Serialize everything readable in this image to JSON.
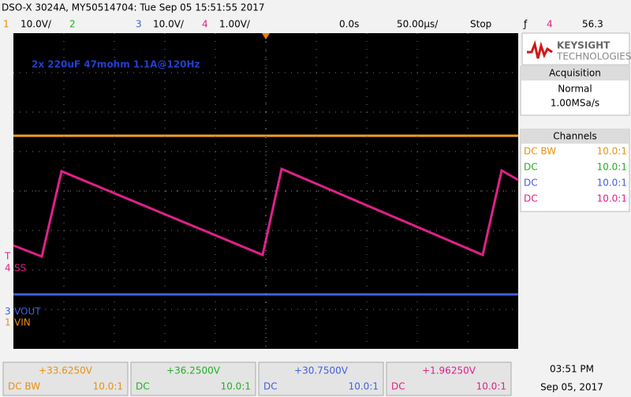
{
  "header": {
    "title": "DSO-X 3024A, MY50514704: Tue Sep 05 15:51:55 2017",
    "ch1_number": "1",
    "ch1_scale": "10.0V/",
    "ch2_number": "2",
    "ch3_number": "3",
    "ch3_scale": "10.0V/",
    "ch4_number": "4",
    "ch4_scale": "1.00V/",
    "time_offset": "0.0s",
    "time_scale": "50.00µs/",
    "run_state": "Stop",
    "trigger_channel": "4",
    "trigger_level": "56.3"
  },
  "annotation": "2x 220uF 47mohm 1.1A@120Hz",
  "markers": [
    {
      "number": "T",
      "label": ""
    },
    {
      "number": "4",
      "label": "SS"
    },
    {
      "number": "3",
      "label": "VOUT"
    },
    {
      "number": "1",
      "label": "VIN"
    }
  ],
  "panel": {
    "brand": "KEYSIGHT",
    "brand_sub": "TECHNOLOGIES",
    "acquisition": {
      "title": "Acquisition",
      "mode": "Normal",
      "rate": "1.00MSa/s"
    },
    "channels": {
      "title": "Channels",
      "rows": [
        {
          "coupling": "DC BW",
          "ratio": "10.0:1"
        },
        {
          "coupling": "DC",
          "ratio": "10.0:1"
        },
        {
          "coupling": "DC",
          "ratio": "10.0:1"
        },
        {
          "coupling": "DC",
          "ratio": "10.0:1"
        }
      ]
    }
  },
  "footer": {
    "channels": [
      {
        "value": "+33.6250V",
        "coupling": "DC BW",
        "ratio": "10.0:1"
      },
      {
        "value": "+36.2500V",
        "coupling": "DC",
        "ratio": "10.0:1"
      },
      {
        "value": "+30.7500V",
        "coupling": "DC",
        "ratio": "10.0:1"
      },
      {
        "value": "+1.96250V",
        "coupling": "DC",
        "ratio": "10.0:1"
      }
    ],
    "time": "03:51 PM",
    "date": "Sep 05, 2017"
  }
}
